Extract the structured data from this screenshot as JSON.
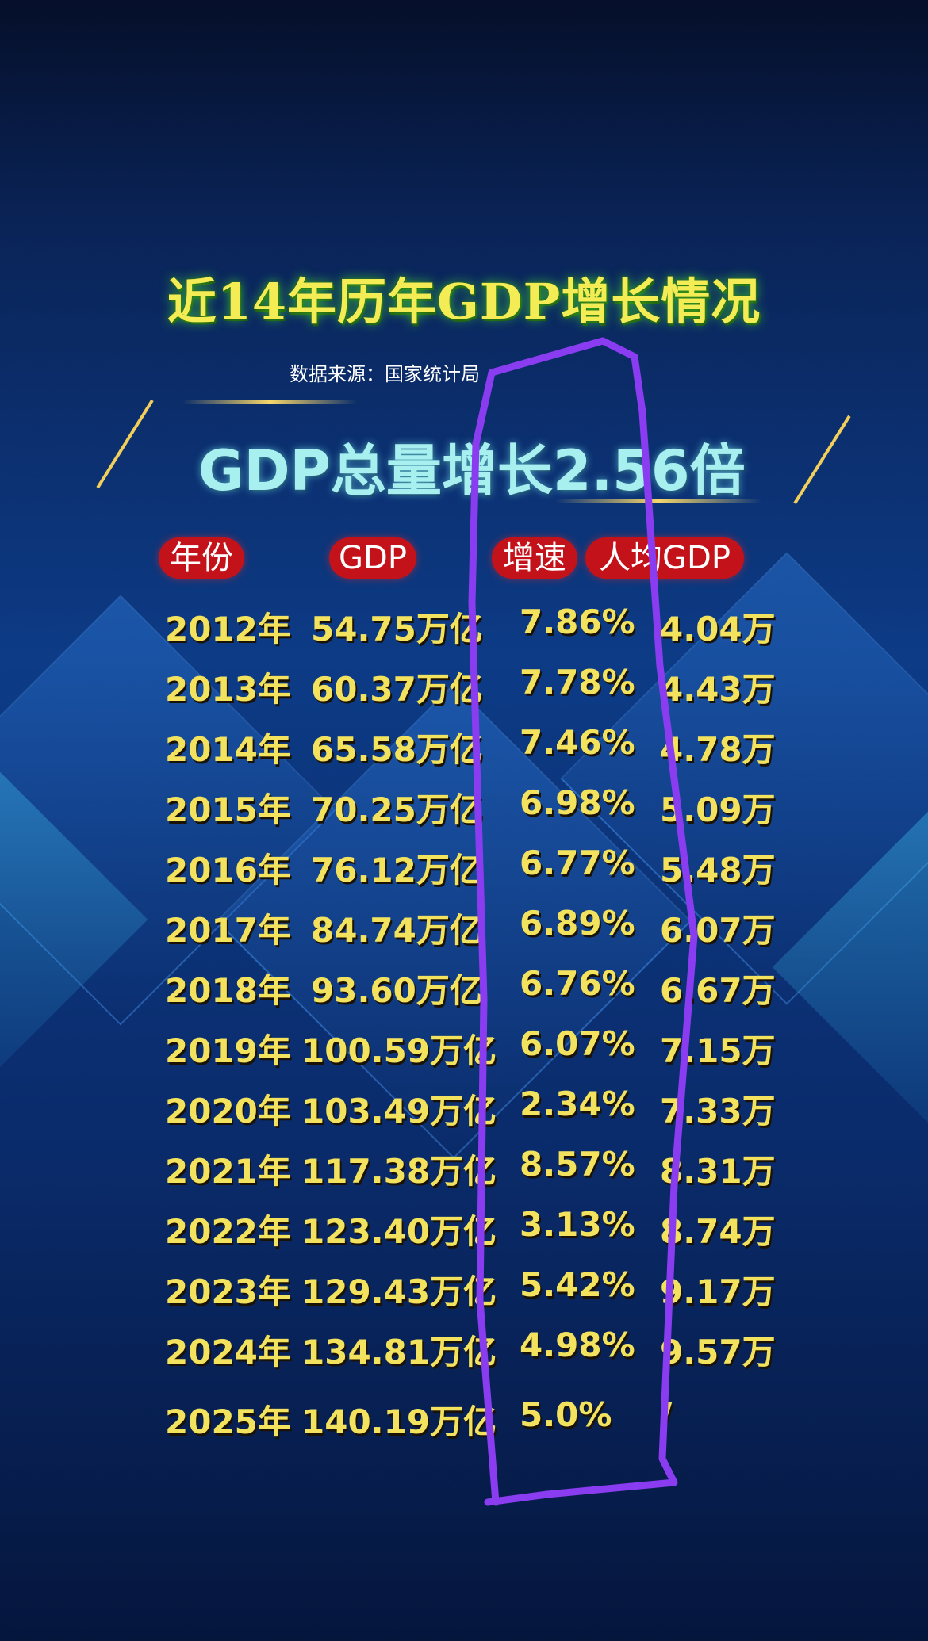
{
  "title": "近14年历年GDP增长情况",
  "source": "数据来源：国家统计局",
  "banner": "GDP总量增长2.56倍",
  "headers": {
    "year": "年份",
    "gdp": "GDP",
    "rate": "增速",
    "per_capita": "人均GDP"
  },
  "rows": [
    {
      "year": "2012年",
      "gdp": "54.75万亿",
      "rate": "7.86%",
      "per_capita": "4.04万"
    },
    {
      "year": "2013年",
      "gdp": "60.37万亿",
      "rate": "7.78%",
      "per_capita": "4.43万"
    },
    {
      "year": "2014年",
      "gdp": "65.58万亿",
      "rate": "7.46%",
      "per_capita": "4.78万"
    },
    {
      "year": "2015年",
      "gdp": "70.25万亿",
      "rate": "6.98%",
      "per_capita": "5.09万"
    },
    {
      "year": "2016年",
      "gdp": "76.12万亿",
      "rate": "6.77%",
      "per_capita": "5.48万"
    },
    {
      "year": "2017年",
      "gdp": "84.74万亿",
      "rate": "6.89%",
      "per_capita": "6.07万"
    },
    {
      "year": "2018年",
      "gdp": "93.60万亿",
      "rate": "6.76%",
      "per_capita": "6.67万"
    },
    {
      "year": "2019年",
      "gdp": "100.59万亿",
      "rate": "6.07%",
      "per_capita": "7.15万"
    },
    {
      "year": "2020年",
      "gdp": "103.49万亿",
      "rate": "2.34%",
      "per_capita": "7.33万"
    },
    {
      "year": "2021年",
      "gdp": "117.38万亿",
      "rate": "8.57%",
      "per_capita": "8.31万"
    },
    {
      "year": "2022年",
      "gdp": "123.40万亿",
      "rate": "3.13%",
      "per_capita": "8.74万"
    },
    {
      "year": "2023年",
      "gdp": "129.43万亿",
      "rate": "5.42%",
      "per_capita": "9.17万"
    },
    {
      "year": "2024年",
      "gdp": "134.81万亿",
      "rate": "4.98%",
      "per_capita": "9.57万"
    },
    {
      "year": "2025年",
      "gdp": "140.19万亿",
      "rate": "5.0%",
      "per_capita": "/"
    }
  ],
  "colors": {
    "title": "#f4ec55",
    "title_glow": "#46dc32",
    "banner": "#a8f0ef",
    "header_bg": "#c4121a",
    "row_text": "#f2e25e",
    "annotation": "#8a3cf0"
  }
}
